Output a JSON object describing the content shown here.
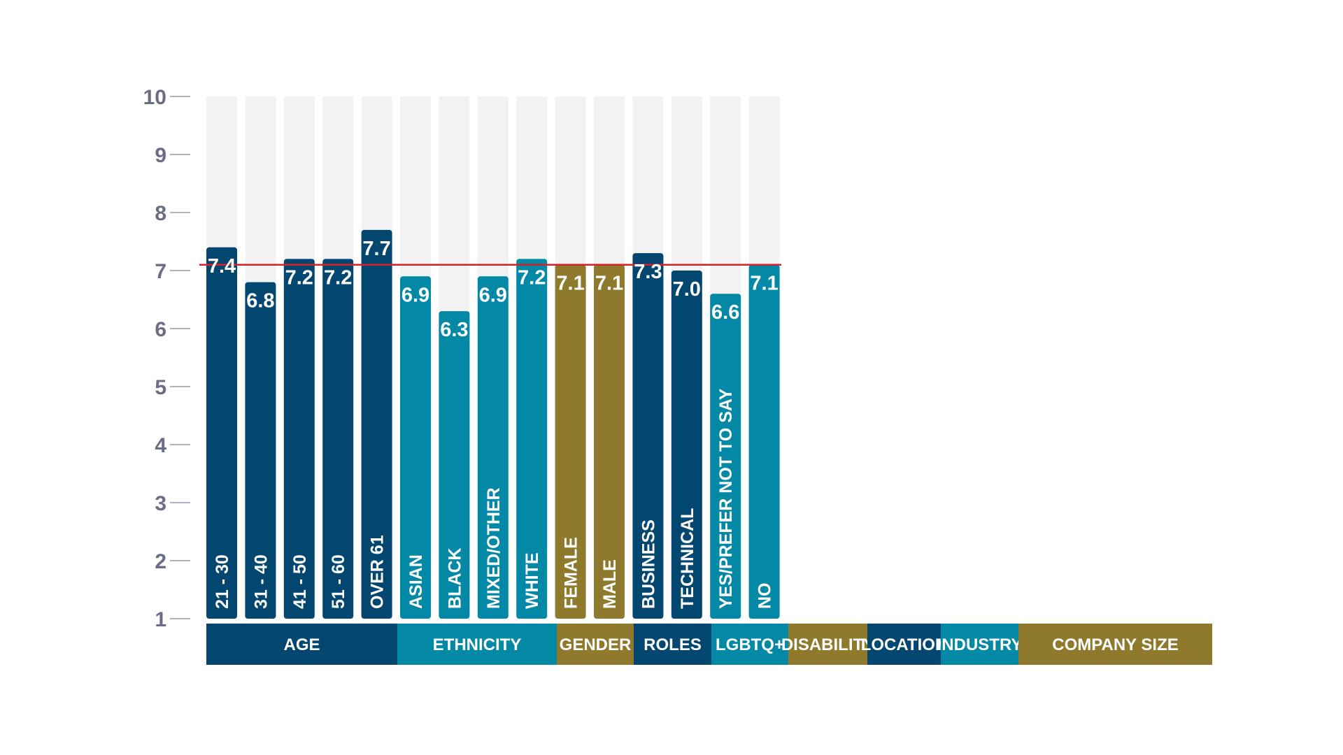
{
  "chart_data": {
    "type": "bar",
    "title": "",
    "xlabel": "",
    "ylabel": "",
    "ylim": [
      1,
      10
    ],
    "yticks": [
      1,
      2,
      3,
      4,
      5,
      6,
      7,
      8,
      9,
      10
    ],
    "reference_line": {
      "value": 7.1,
      "color": "#d42027"
    },
    "grid": false,
    "colors": {
      "navy": "#03466f",
      "teal": "#0388a6",
      "olive": "#8e792c",
      "track": "#f2f2f2"
    },
    "bars": [
      {
        "category": "21 - 30",
        "value": 7.4,
        "value_label": "7.4",
        "group": "AGE",
        "color": "#03466f"
      },
      {
        "category": "31 - 40",
        "value": 6.8,
        "value_label": "6.8",
        "group": "AGE",
        "color": "#03466f"
      },
      {
        "category": "41 - 50",
        "value": 7.2,
        "value_label": "7.2",
        "group": "AGE",
        "color": "#03466f"
      },
      {
        "category": "51 - 60",
        "value": 7.2,
        "value_label": "7.2",
        "group": "AGE",
        "color": "#03466f"
      },
      {
        "category": "OVER 61",
        "value": 7.7,
        "value_label": "7.7",
        "group": "AGE",
        "color": "#03466f"
      },
      {
        "category": "ASIAN",
        "value": 6.9,
        "value_label": "6.9",
        "group": "ETHNICITY",
        "color": "#0388a6"
      },
      {
        "category": "BLACK",
        "value": 6.3,
        "value_label": "6.3",
        "group": "ETHNICITY",
        "color": "#0388a6"
      },
      {
        "category": "MIXED/OTHER",
        "value": 6.9,
        "value_label": "6.9",
        "group": "ETHNICITY",
        "color": "#0388a6"
      },
      {
        "category": "WHITE",
        "value": 7.2,
        "value_label": "7.2",
        "group": "ETHNICITY",
        "color": "#0388a6"
      },
      {
        "category": "FEMALE",
        "value": 7.1,
        "value_label": "7.1",
        "group": "GENDER",
        "color": "#8e792c"
      },
      {
        "category": "MALE",
        "value": 7.1,
        "value_label": "7.1",
        "group": "GENDER",
        "color": "#8e792c"
      },
      {
        "category": "BUSINESS",
        "value": 7.3,
        "value_label": "7.3",
        "group": "ROLES",
        "color": "#03466f"
      },
      {
        "category": "TECHNICAL",
        "value": 7.0,
        "value_label": "7.0",
        "group": "ROLES",
        "color": "#03466f"
      },
      {
        "category": "YES/PREFER NOT TO SAY",
        "value": 6.6,
        "value_label": "6.6",
        "group": "LGBTQ+",
        "color": "#0388a6"
      },
      {
        "category": "NO",
        "value": 7.1,
        "value_label": "7.1",
        "group": "LGBTQ+",
        "color": "#0388a6"
      }
    ],
    "groups": [
      {
        "label": "AGE",
        "color": "#03466f"
      },
      {
        "label": "ETHNICITY",
        "color": "#0388a6"
      },
      {
        "label": "GENDER",
        "color": "#8e792c"
      },
      {
        "label": "ROLES",
        "color": "#03466f"
      },
      {
        "label": "LGBTQ+",
        "color": "#0388a6"
      },
      {
        "label": "DISABILITY",
        "color": "#8e792c"
      },
      {
        "label": "LOCATION",
        "color": "#03466f"
      },
      {
        "label": "INDUSTRY",
        "color": "#0388a6"
      },
      {
        "label": "COMPANY SIZE",
        "color": "#8e792c"
      }
    ]
  }
}
